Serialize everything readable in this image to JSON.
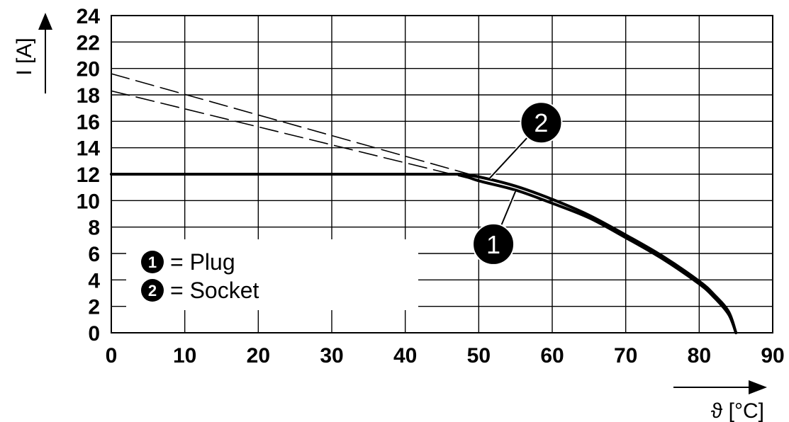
{
  "chart_data": {
    "type": "line",
    "xlabel": "ϑ [°C]",
    "ylabel": "I [A]",
    "xlim": [
      0,
      90
    ],
    "ylim": [
      0,
      24
    ],
    "x_ticks": [
      0,
      10,
      20,
      30,
      40,
      50,
      60,
      70,
      80,
      90
    ],
    "y_ticks": [
      0,
      2,
      4,
      6,
      8,
      10,
      12,
      14,
      16,
      18,
      20,
      22,
      24
    ],
    "x_tick_labels": [
      "0",
      "10",
      "20",
      "30",
      "40",
      "50",
      "60",
      "70",
      "80",
      "90"
    ],
    "y_tick_labels": [
      "0",
      "2",
      "4",
      "6",
      "8",
      "10",
      "12",
      "14",
      "16",
      "18",
      "20",
      "22",
      "24"
    ],
    "grid": true,
    "legend": [
      {
        "marker": "1",
        "text": "= Plug"
      },
      {
        "marker": "2",
        "text": "= Socket"
      }
    ],
    "legend_position": "bottom-left",
    "series": [
      {
        "marker": "1",
        "style": "solid",
        "x": [
          0,
          47.5,
          50,
          55,
          60,
          65,
          70,
          75,
          80,
          82,
          84,
          85
        ],
        "y": [
          12,
          12,
          11.5,
          10.8,
          9.8,
          8.7,
          7.2,
          5.6,
          3.7,
          2.7,
          1.4,
          0
        ]
      },
      {
        "marker": "2",
        "style": "solid",
        "x": [
          0,
          47.5,
          50,
          55,
          60,
          65,
          70,
          75,
          80,
          82,
          84,
          85
        ],
        "y": [
          12,
          12,
          11.8,
          11.1,
          10.1,
          8.9,
          7.4,
          5.8,
          3.9,
          2.9,
          1.6,
          0
        ]
      },
      {
        "marker": "1",
        "style": "dashed",
        "x": [
          0,
          50
        ],
        "y": [
          18.3,
          11.5
        ]
      },
      {
        "marker": "2",
        "style": "dashed",
        "x": [
          0,
          50
        ],
        "y": [
          19.6,
          11.8
        ]
      }
    ],
    "annotations": [
      {
        "label": "1",
        "x": 52,
        "y": 6.7,
        "points_to": {
          "x": 55,
          "y": 10.7
        }
      },
      {
        "label": "2",
        "x": 58.5,
        "y": 15.9,
        "points_to": {
          "x": 51.5,
          "y": 11.7
        }
      }
    ]
  }
}
